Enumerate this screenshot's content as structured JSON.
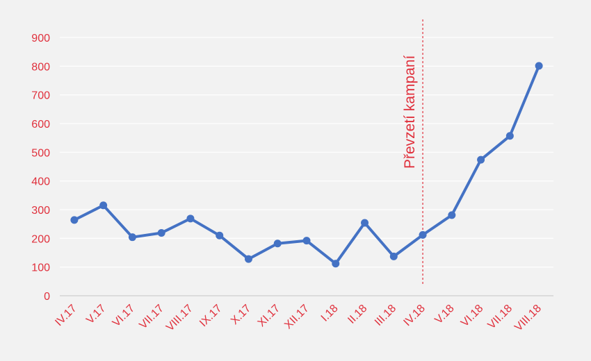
{
  "chart_data": {
    "type": "line",
    "categories": [
      "IV.17",
      "V.17",
      "VI.17",
      "VII.17",
      "VIII.17",
      "IX.17",
      "X.17",
      "XI.17",
      "XII.17",
      "I.18",
      "II.18",
      "III.18",
      "IV.18",
      "V.18",
      "VI.18",
      "VII.18",
      "VIII.18"
    ],
    "series": [
      {
        "values": [
          264,
          315,
          204,
          219,
          269,
          210,
          128,
          182,
          192,
          112,
          254,
          137,
          212,
          281,
          474,
          557,
          801
        ],
        "color": "#4472c4"
      }
    ],
    "ylim": [
      0,
      900
    ],
    "yticks": [
      0,
      100,
      200,
      300,
      400,
      500,
      600,
      700,
      800,
      900
    ],
    "grid": true,
    "annotation": {
      "category": "IV.18",
      "label": "Převzetí kampaní",
      "color": "#e0303c",
      "style": "dashed-vertical-line"
    },
    "tick_color": "#e0303c",
    "grid_color": "#ffffff"
  }
}
